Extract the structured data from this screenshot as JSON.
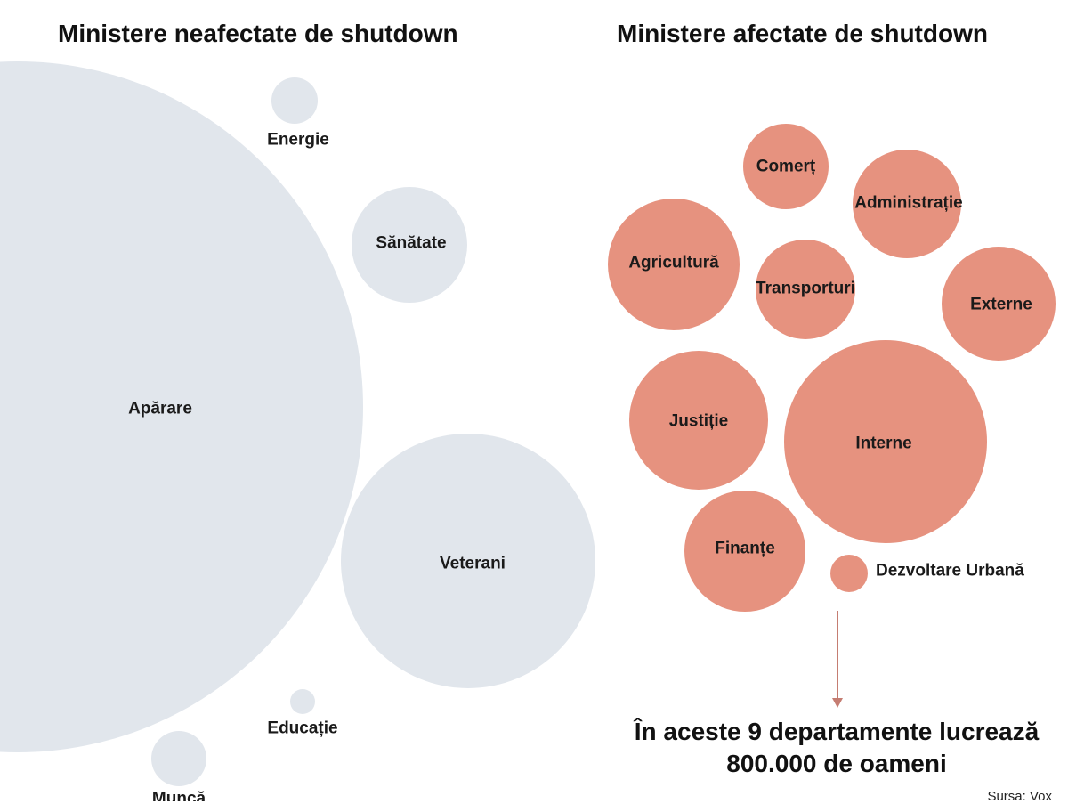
{
  "titles": {
    "left": "Ministere neafectate de shutdown",
    "right": "Ministere afectate de shutdown"
  },
  "colors": {
    "unaffected": "#e1e6ec",
    "affected": "#e6927f",
    "arrow": "#c57d72"
  },
  "unaffected": [
    {
      "key": "aparare",
      "label": "Apărare"
    },
    {
      "key": "energie",
      "label": "Energie"
    },
    {
      "key": "sanatate",
      "label": "Sănătate"
    },
    {
      "key": "veterani",
      "label": "Veterani"
    },
    {
      "key": "educatie",
      "label": "Educație"
    },
    {
      "key": "munca",
      "label": "Muncă"
    }
  ],
  "affected": [
    {
      "key": "comert",
      "label": "Comerț"
    },
    {
      "key": "administratie",
      "label": "Administrație"
    },
    {
      "key": "agricultura",
      "label": "Agricultură"
    },
    {
      "key": "transporturi",
      "label": "Transporturi"
    },
    {
      "key": "externe",
      "label": "Externe"
    },
    {
      "key": "justitie",
      "label": "Justiție"
    },
    {
      "key": "interne",
      "label": "Interne"
    },
    {
      "key": "finante",
      "label": "Finanțe"
    },
    {
      "key": "dezvoltare-urbana",
      "label": "Dezvoltare Urbană"
    }
  ],
  "conclusion": {
    "line1": "În aceste 9 departamente lucrează",
    "line2": "800.000 de oameni"
  },
  "source": "Sursa: Vox"
}
